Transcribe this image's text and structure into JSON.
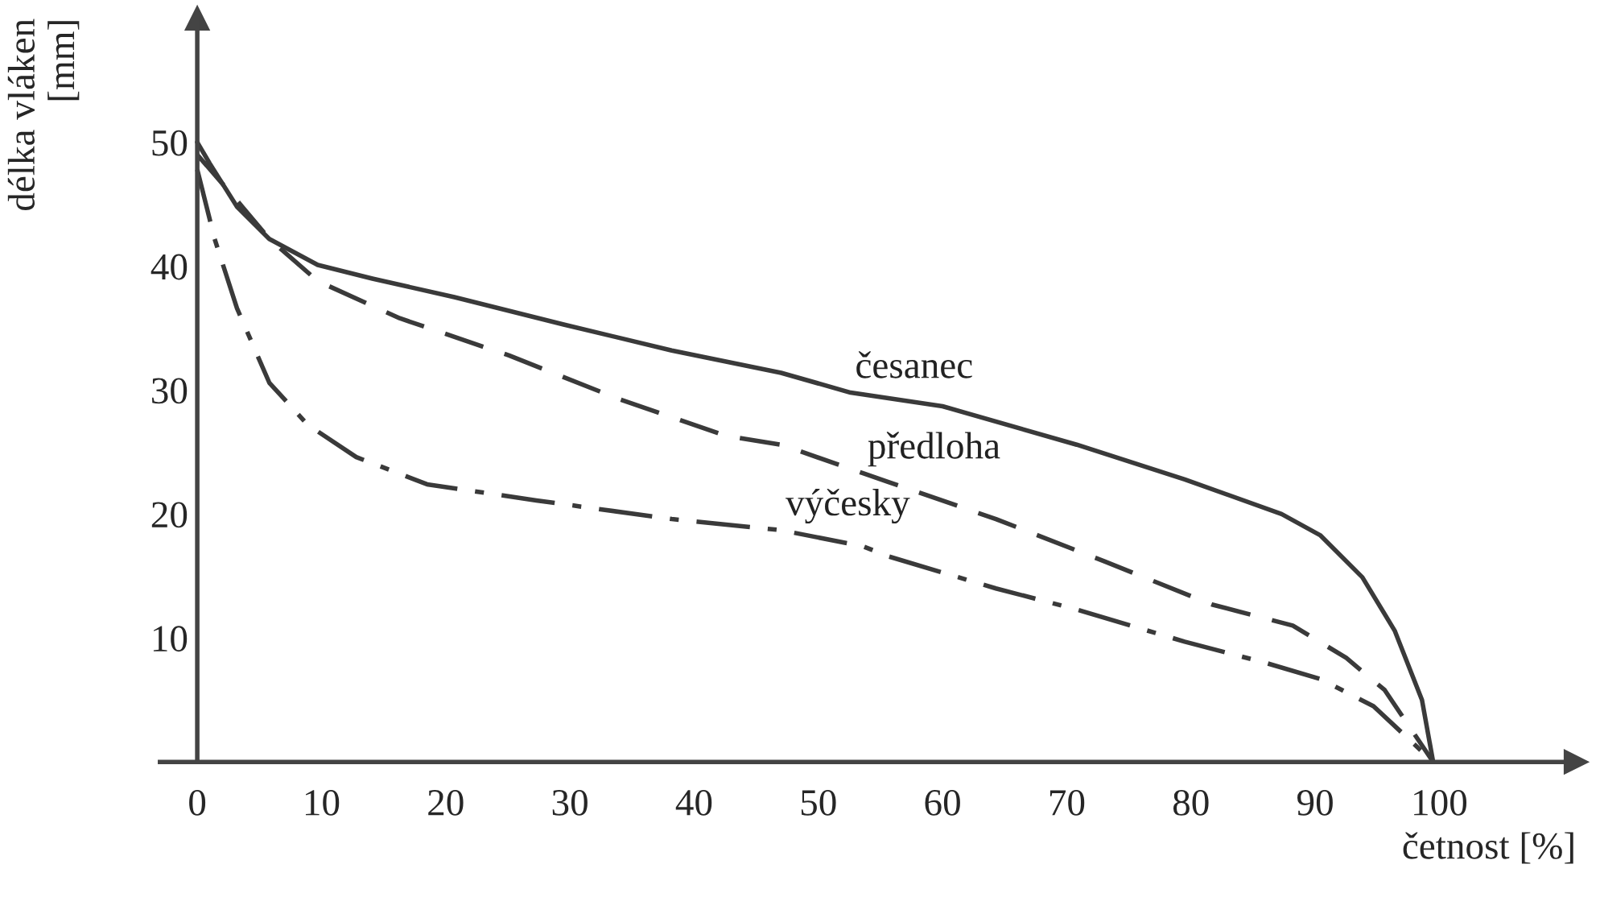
{
  "chart_data": {
    "type": "line",
    "xlabel": "četnost [%]",
    "ylabel": "délka vláken\n[mm]",
    "xlim": [
      -3,
      111
    ],
    "ylim": [
      0,
      60
    ],
    "xticks": [
      {
        "value": 0,
        "label": "0"
      },
      10,
      20,
      30,
      40,
      50,
      60,
      70,
      80,
      90,
      100
    ],
    "yticks": [
      10,
      20,
      30,
      40,
      50
    ],
    "grid": false,
    "legend": false,
    "marker": "none",
    "series": [
      {
        "name": "česanec",
        "color": "#3a3a3a",
        "line_style": "solid",
        "x": [
          0,
          1,
          3.2,
          5.8,
          9.7,
          14.1,
          20.7,
          29.5,
          38.2,
          47,
          52.6,
          60,
          70.8,
          79.5,
          87.3,
          90.4,
          93.8,
          96.4,
          98.6,
          99.5
        ],
        "values": [
          50,
          48.3,
          44.8,
          42.2,
          40.1,
          39.0,
          37.5,
          35.3,
          33.2,
          31.4,
          29.8,
          28.7,
          25.6,
          22.8,
          20.0,
          18.3,
          14.9,
          10.6,
          5.0,
          0
        ]
      },
      {
        "name": "předloha",
        "color": "#3a3a3a",
        "line_style": "dashed",
        "x": [
          0,
          3.2,
          5.8,
          9.7,
          16.3,
          25.1,
          33.9,
          42.6,
          47,
          53.6,
          55.6,
          64.3,
          73,
          81.7,
          88.2,
          92.5,
          95.6,
          99.5
        ],
        "values": [
          49,
          45.3,
          42.2,
          38.8,
          35.8,
          32.8,
          29.3,
          26.3,
          25.6,
          23.3,
          22.6,
          19.6,
          16.2,
          12.7,
          11.0,
          8.4,
          5.8,
          0
        ]
      },
      {
        "name": "výčesky",
        "color": "#3a3a3a",
        "line_style": "dashdot",
        "x": [
          0,
          1.4,
          3.2,
          5.8,
          8.9,
          12.8,
          18.5,
          27.3,
          38.2,
          47,
          53.6,
          55.6,
          64.3,
          70.8,
          79.5,
          86,
          90.4,
          94.7,
          99.5
        ],
        "values": [
          47.8,
          42.2,
          36.6,
          30.6,
          27.2,
          24.6,
          22.4,
          21.1,
          19.6,
          18.7,
          17.4,
          16.6,
          14.0,
          12.3,
          9.7,
          8.0,
          6.7,
          4.5,
          0
        ]
      }
    ]
  }
}
